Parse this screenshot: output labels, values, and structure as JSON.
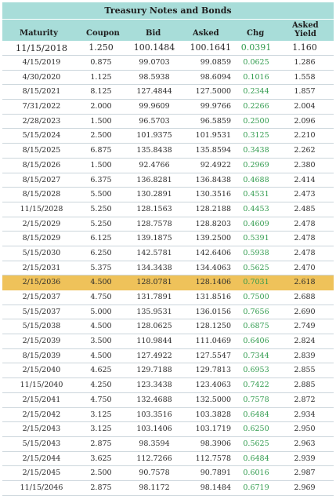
{
  "title": "Treasury Notes and Bonds",
  "columns": {
    "maturity": "Maturity",
    "coupon": "Coupon",
    "bid": "Bid",
    "asked": "Asked",
    "chg": "Chg",
    "yield_line1": "Asked",
    "yield_line2": "Yield"
  },
  "colors": {
    "header_bg": "#a8ddd9",
    "highlight_row": "#efc25a",
    "chg_text": "#2f9a4c"
  },
  "highlighted_maturity": "2/15/2036",
  "rows": [
    {
      "maturity": "11/15/2018",
      "coupon": "1.250",
      "bid": "100.1484",
      "asked": "100.1641",
      "chg": "0.0391",
      "yield": "1.160"
    },
    {
      "maturity": "4/15/2019",
      "coupon": "0.875",
      "bid": "99.0703",
      "asked": "99.0859",
      "chg": "0.0625",
      "yield": "1.286"
    },
    {
      "maturity": "4/30/2020",
      "coupon": "1.125",
      "bid": "98.5938",
      "asked": "98.6094",
      "chg": "0.1016",
      "yield": "1.558"
    },
    {
      "maturity": "8/15/2021",
      "coupon": "8.125",
      "bid": "127.4844",
      "asked": "127.5000",
      "chg": "0.2344",
      "yield": "1.857"
    },
    {
      "maturity": "7/31/2022",
      "coupon": "2.000",
      "bid": "99.9609",
      "asked": "99.9766",
      "chg": "0.2266",
      "yield": "2.004"
    },
    {
      "maturity": "2/28/2023",
      "coupon": "1.500",
      "bid": "96.5703",
      "asked": "96.5859",
      "chg": "0.2500",
      "yield": "2.096"
    },
    {
      "maturity": "5/15/2024",
      "coupon": "2.500",
      "bid": "101.9375",
      "asked": "101.9531",
      "chg": "0.3125",
      "yield": "2.210"
    },
    {
      "maturity": "8/15/2025",
      "coupon": "6.875",
      "bid": "135.8438",
      "asked": "135.8594",
      "chg": "0.3438",
      "yield": "2.262"
    },
    {
      "maturity": "8/15/2026",
      "coupon": "1.500",
      "bid": "92.4766",
      "asked": "92.4922",
      "chg": "0.2969",
      "yield": "2.380"
    },
    {
      "maturity": "8/15/2027",
      "coupon": "6.375",
      "bid": "136.8281",
      "asked": "136.8438",
      "chg": "0.4688",
      "yield": "2.414"
    },
    {
      "maturity": "8/15/2028",
      "coupon": "5.500",
      "bid": "130.2891",
      "asked": "130.3516",
      "chg": "0.4531",
      "yield": "2.473"
    },
    {
      "maturity": "11/15/2028",
      "coupon": "5.250",
      "bid": "128.1563",
      "asked": "128.2188",
      "chg": "0.4453",
      "yield": "2.485"
    },
    {
      "maturity": "2/15/2029",
      "coupon": "5.250",
      "bid": "128.7578",
      "asked": "128.8203",
      "chg": "0.4609",
      "yield": "2.478"
    },
    {
      "maturity": "8/15/2029",
      "coupon": "6.125",
      "bid": "139.1875",
      "asked": "139.2500",
      "chg": "0.5391",
      "yield": "2.478"
    },
    {
      "maturity": "5/15/2030",
      "coupon": "6.250",
      "bid": "142.5781",
      "asked": "142.6406",
      "chg": "0.5938",
      "yield": "2.478"
    },
    {
      "maturity": "2/15/2031",
      "coupon": "5.375",
      "bid": "134.3438",
      "asked": "134.4063",
      "chg": "0.5625",
      "yield": "2.470"
    },
    {
      "maturity": "2/15/2036",
      "coupon": "4.500",
      "bid": "128.0781",
      "asked": "128.1406",
      "chg": "0.7031",
      "yield": "2.618"
    },
    {
      "maturity": "2/15/2037",
      "coupon": "4.750",
      "bid": "131.7891",
      "asked": "131.8516",
      "chg": "0.7500",
      "yield": "2.688"
    },
    {
      "maturity": "5/15/2037",
      "coupon": "5.000",
      "bid": "135.9531",
      "asked": "136.0156",
      "chg": "0.7656",
      "yield": "2.690"
    },
    {
      "maturity": "5/15/2038",
      "coupon": "4.500",
      "bid": "128.0625",
      "asked": "128.1250",
      "chg": "0.6875",
      "yield": "2.749"
    },
    {
      "maturity": "2/15/2039",
      "coupon": "3.500",
      "bid": "110.9844",
      "asked": "111.0469",
      "chg": "0.6406",
      "yield": "2.824"
    },
    {
      "maturity": "8/15/2039",
      "coupon": "4.500",
      "bid": "127.4922",
      "asked": "127.5547",
      "chg": "0.7344",
      "yield": "2.839"
    },
    {
      "maturity": "2/15/2040",
      "coupon": "4.625",
      "bid": "129.7188",
      "asked": "129.7813",
      "chg": "0.6953",
      "yield": "2.855"
    },
    {
      "maturity": "11/15/2040",
      "coupon": "4.250",
      "bid": "123.3438",
      "asked": "123.4063",
      "chg": "0.7422",
      "yield": "2.885"
    },
    {
      "maturity": "2/15/2041",
      "coupon": "4.750",
      "bid": "132.4688",
      "asked": "132.5000",
      "chg": "0.7578",
      "yield": "2.872"
    },
    {
      "maturity": "2/15/2042",
      "coupon": "3.125",
      "bid": "103.3516",
      "asked": "103.3828",
      "chg": "0.6484",
      "yield": "2.934"
    },
    {
      "maturity": "2/15/2043",
      "coupon": "3.125",
      "bid": "103.1406",
      "asked": "103.1719",
      "chg": "0.6250",
      "yield": "2.950"
    },
    {
      "maturity": "5/15/2043",
      "coupon": "2.875",
      "bid": "98.3594",
      "asked": "98.3906",
      "chg": "0.5625",
      "yield": "2.963"
    },
    {
      "maturity": "2/15/2044",
      "coupon": "3.625",
      "bid": "112.7266",
      "asked": "112.7578",
      "chg": "0.6484",
      "yield": "2.939"
    },
    {
      "maturity": "2/15/2045",
      "coupon": "2.500",
      "bid": "90.7578",
      "asked": "90.7891",
      "chg": "0.6016",
      "yield": "2.987"
    },
    {
      "maturity": "11/15/2046",
      "coupon": "2.875",
      "bid": "98.1172",
      "asked": "98.1484",
      "chg": "0.6719",
      "yield": "2.969"
    }
  ]
}
